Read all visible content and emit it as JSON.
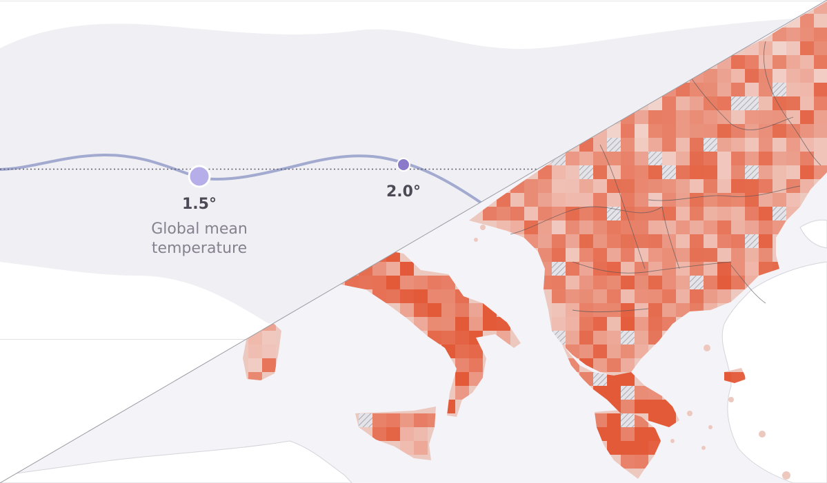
{
  "colors": {
    "band": "#efeff4",
    "curve": "#a3aad0",
    "marker_large": "#b6aee9",
    "marker_small": "#8b7ac9",
    "sea": "#f4f3f8",
    "land_outside": "#ffffff",
    "heat_low": "#f3d9d3",
    "heat_high": "#e35a39",
    "no_data": "#c9c9cf",
    "border": "#5a5a5a"
  },
  "markers": [
    {
      "value_label": "1.5°",
      "caption_lines": [
        "Global mean",
        "temperature"
      ],
      "size": "large"
    },
    {
      "value_label": "2.0°",
      "caption_lines": [],
      "size": "small"
    }
  ],
  "map_regions": [
    "italy-peninsula",
    "sicily",
    "sardinia",
    "balkans",
    "greece",
    "peloponnese",
    "crete",
    "turkey",
    "north-africa"
  ]
}
